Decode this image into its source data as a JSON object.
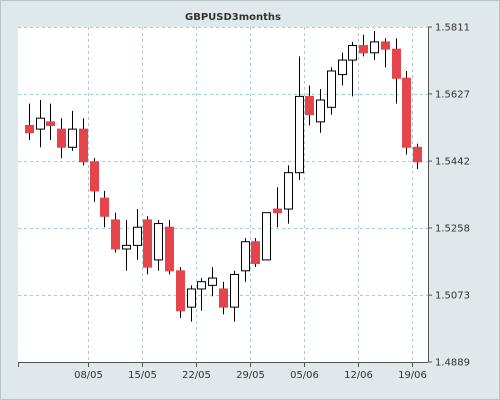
{
  "chart_data": {
    "type": "candlestick",
    "title": "GBPUSD3months",
    "xlabel": "",
    "ylabel": "",
    "ylim": [
      1.4889,
      1.5811
    ],
    "y_ticks": [
      1.4889,
      1.5073,
      1.5258,
      1.5442,
      1.5627,
      1.5811
    ],
    "y_tick_labels": [
      "1.4889",
      "1.5073",
      "1.5258",
      "1.5442",
      "1.5627",
      "1.5811"
    ],
    "x_tick_labels": [
      "08/05",
      "15/05",
      "22/05",
      "29/05",
      "05/06",
      "12/06",
      "19/06"
    ],
    "x_tick_index": [
      5.5,
      10.5,
      15.5,
      20.5,
      25.5,
      30.5,
      35.5
    ],
    "grid": true,
    "colors": {
      "background": "#dfe8ea",
      "plot_background": "#ffffff",
      "grid": "#9fcfd6",
      "axis": "#555555",
      "up_fill": "#ffffff",
      "down_fill": "#e5454a",
      "candle_stroke": "#000000"
    },
    "candles": [
      {
        "open": 1.554,
        "high": 1.56,
        "low": 1.55,
        "close": 1.552
      },
      {
        "open": 1.553,
        "high": 1.561,
        "low": 1.548,
        "close": 1.556
      },
      {
        "open": 1.555,
        "high": 1.56,
        "low": 1.55,
        "close": 1.554
      },
      {
        "open": 1.553,
        "high": 1.556,
        "low": 1.545,
        "close": 1.548
      },
      {
        "open": 1.548,
        "high": 1.558,
        "low": 1.547,
        "close": 1.553
      },
      {
        "open": 1.553,
        "high": 1.556,
        "low": 1.543,
        "close": 1.544
      },
      {
        "open": 1.544,
        "high": 1.545,
        "low": 1.533,
        "close": 1.536
      },
      {
        "open": 1.534,
        "high": 1.536,
        "low": 1.526,
        "close": 1.529
      },
      {
        "open": 1.528,
        "high": 1.53,
        "low": 1.519,
        "close": 1.52
      },
      {
        "open": 1.52,
        "high": 1.528,
        "low": 1.514,
        "close": 1.521
      },
      {
        "open": 1.521,
        "high": 1.531,
        "low": 1.517,
        "close": 1.526
      },
      {
        "open": 1.528,
        "high": 1.529,
        "low": 1.513,
        "close": 1.515
      },
      {
        "open": 1.517,
        "high": 1.528,
        "low": 1.514,
        "close": 1.527
      },
      {
        "open": 1.526,
        "high": 1.528,
        "low": 1.513,
        "close": 1.514
      },
      {
        "open": 1.514,
        "high": 1.515,
        "low": 1.501,
        "close": 1.503
      },
      {
        "open": 1.504,
        "high": 1.51,
        "low": 1.5,
        "close": 1.509
      },
      {
        "open": 1.509,
        "high": 1.512,
        "low": 1.503,
        "close": 1.511
      },
      {
        "open": 1.51,
        "high": 1.515,
        "low": 1.507,
        "close": 1.512
      },
      {
        "open": 1.509,
        "high": 1.511,
        "low": 1.502,
        "close": 1.504
      },
      {
        "open": 1.504,
        "high": 1.514,
        "low": 1.5,
        "close": 1.513
      },
      {
        "open": 1.514,
        "high": 1.523,
        "low": 1.511,
        "close": 1.522
      },
      {
        "open": 1.522,
        "high": 1.523,
        "low": 1.515,
        "close": 1.516
      },
      {
        "open": 1.517,
        "high": 1.53,
        "low": 1.517,
        "close": 1.53
      },
      {
        "open": 1.531,
        "high": 1.537,
        "low": 1.526,
        "close": 1.53
      },
      {
        "open": 1.531,
        "high": 1.543,
        "low": 1.527,
        "close": 1.541
      },
      {
        "open": 1.541,
        "high": 1.573,
        "low": 1.539,
        "close": 1.562
      },
      {
        "open": 1.562,
        "high": 1.565,
        "low": 1.554,
        "close": 1.557
      },
      {
        "open": 1.555,
        "high": 1.564,
        "low": 1.552,
        "close": 1.561
      },
      {
        "open": 1.559,
        "high": 1.57,
        "low": 1.557,
        "close": 1.569
      },
      {
        "open": 1.568,
        "high": 1.574,
        "low": 1.565,
        "close": 1.572
      },
      {
        "open": 1.572,
        "high": 1.577,
        "low": 1.562,
        "close": 1.576
      },
      {
        "open": 1.576,
        "high": 1.579,
        "low": 1.573,
        "close": 1.574
      },
      {
        "open": 1.574,
        "high": 1.58,
        "low": 1.572,
        "close": 1.577
      },
      {
        "open": 1.577,
        "high": 1.578,
        "low": 1.57,
        "close": 1.575
      },
      {
        "open": 1.575,
        "high": 1.578,
        "low": 1.56,
        "close": 1.567
      },
      {
        "open": 1.567,
        "high": 1.569,
        "low": 1.546,
        "close": 1.548
      },
      {
        "open": 1.548,
        "high": 1.549,
        "low": 1.542,
        "close": 1.544
      }
    ]
  }
}
